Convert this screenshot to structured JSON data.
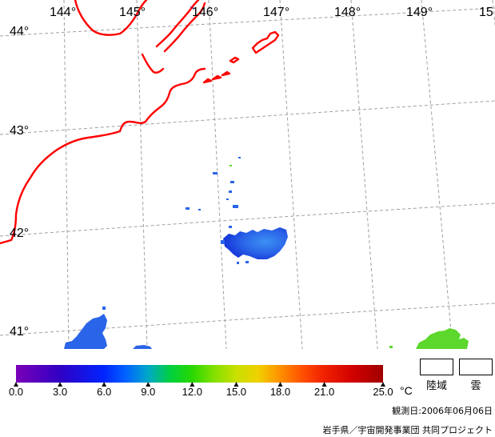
{
  "map": {
    "longitude_labels": [
      "144°",
      "145°",
      "146°",
      "147°",
      "148°",
      "149°",
      "15"
    ],
    "latitude_labels": [
      "44°",
      "43°",
      "42°",
      "41°"
    ],
    "colors": {
      "background": "#ffffff",
      "coastline": "#ff0000",
      "graticule": "#a0a0a0",
      "sst_patch_blue": "#2a64e8",
      "sst_patch_green": "#5cd82c"
    }
  },
  "colorbar": {
    "min": 0,
    "max": 25,
    "unit": "°C",
    "ticks": [
      "0.0",
      "3.0",
      "6.0",
      "9.0",
      "12.0",
      "15.0",
      "18.0",
      "21.0",
      "25.0"
    ],
    "stops": [
      {
        "value": 0.0,
        "color": "#7a00b8"
      },
      {
        "value": 3.0,
        "color": "#3000c4"
      },
      {
        "value": 6.0,
        "color": "#0024ff"
      },
      {
        "value": 7.5,
        "color": "#0064ff"
      },
      {
        "value": 9.0,
        "color": "#00a8c8"
      },
      {
        "value": 10.5,
        "color": "#00d040"
      },
      {
        "value": 12.0,
        "color": "#28d800"
      },
      {
        "value": 13.5,
        "color": "#84e000"
      },
      {
        "value": 15.0,
        "color": "#c8e000"
      },
      {
        "value": 16.5,
        "color": "#f0d000"
      },
      {
        "value": 18.0,
        "color": "#ff9000"
      },
      {
        "value": 19.5,
        "color": "#ff5000"
      },
      {
        "value": 21.0,
        "color": "#f02000"
      },
      {
        "value": 23.0,
        "color": "#d00000"
      },
      {
        "value": 25.0,
        "color": "#a00000"
      }
    ]
  },
  "legend": {
    "land_label": "陸域",
    "land_color": "#ffffff",
    "cloud_label": "雲",
    "cloud_color": "#ffffff"
  },
  "footer": {
    "observation_date": "観測日:2006年06月06日",
    "credit": "岩手県／宇宙開発事業団 共同プロジェクト"
  }
}
